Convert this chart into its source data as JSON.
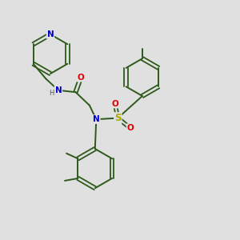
{
  "background_color": "#e0e0e0",
  "bond_color": "#2d5a1b",
  "atom_colors": {
    "N": "#0000cc",
    "O": "#dd0000",
    "S": "#aaaa00",
    "H": "#555555"
  },
  "figsize": [
    3.0,
    3.0
  ],
  "dpi": 100
}
